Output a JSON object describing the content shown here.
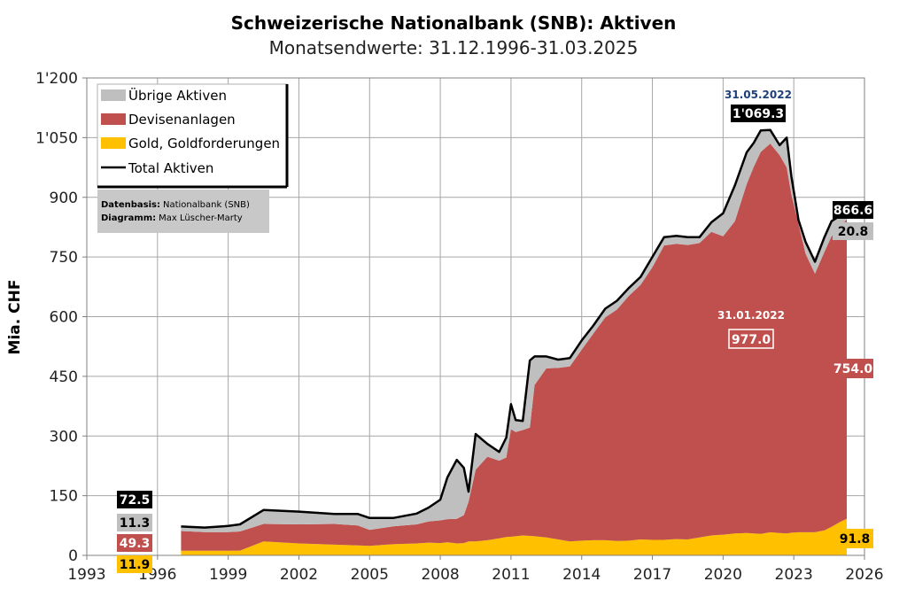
{
  "chart_data": {
    "type": "area",
    "title": "Schweizerische Nationalbank (SNB): Aktiven",
    "subtitle": "Monatsendwerte: 31.12.1996-31.03.2025",
    "ylabel": "Mia. CHF",
    "xlim": [
      1993,
      2026
    ],
    "ylim": [
      0,
      1200
    ],
    "x_ticks": [
      "1993",
      "1996",
      "1999",
      "2002",
      "2005",
      "2008",
      "2011",
      "2014",
      "2017",
      "2020",
      "2023",
      "2026"
    ],
    "y_ticks": [
      "0",
      "150",
      "300",
      "450",
      "600",
      "750",
      "900",
      "1'050",
      "1'200"
    ],
    "grid": true,
    "stack_order": [
      "Gold, Goldforderungen",
      "Devisenanlagen",
      "Übrige Aktiven"
    ],
    "x": [
      1997.0,
      1998.0,
      1999.0,
      1999.5,
      2000.5,
      2002.0,
      2003.5,
      2004.5,
      2005.0,
      2006.0,
      2007.0,
      2007.5,
      2008.0,
      2008.3,
      2008.7,
      2009.0,
      2009.2,
      2009.5,
      2010.0,
      2010.5,
      2010.8,
      2011.0,
      2011.2,
      2011.5,
      2011.8,
      2012.0,
      2012.5,
      2013.0,
      2013.5,
      2014.0,
      2014.5,
      2015.0,
      2015.5,
      2016.0,
      2016.5,
      2017.0,
      2017.5,
      2018.0,
      2018.5,
      2019.0,
      2019.5,
      2020.0,
      2020.5,
      2021.0,
      2021.3,
      2021.6,
      2022.0,
      2022.4,
      2022.7,
      2022.9,
      2023.2,
      2023.5,
      2023.9,
      2024.3,
      2024.6,
      2025.0,
      2025.25
    ],
    "series": [
      {
        "name": "Gold, Goldforderungen",
        "color": "#FFC000",
        "values": [
          11.9,
          11.5,
          11.5,
          12.0,
          35.0,
          30.0,
          27.0,
          25.0,
          24.0,
          28.0,
          30.0,
          32.0,
          31.0,
          33.0,
          30.0,
          31.0,
          35.0,
          35.0,
          38.0,
          43.0,
          46.0,
          47.0,
          48.0,
          50.0,
          49.0,
          48.0,
          45.0,
          40.0,
          35.0,
          37.0,
          38.0,
          38.0,
          36.0,
          37.0,
          40.0,
          39.0,
          39.0,
          41.0,
          40.0,
          45.0,
          50.0,
          52.0,
          55.0,
          56.0,
          55.0,
          54.0,
          58.0,
          56.0,
          55.0,
          57.0,
          58.0,
          58.0,
          58.0,
          63.0,
          72.0,
          85.0,
          91.8
        ]
      },
      {
        "name": "Devisenanlagen",
        "color": "#C0504D",
        "values": [
          49.3,
          47.0,
          47.0,
          48.0,
          44.0,
          48.0,
          52.0,
          50.0,
          40.0,
          45.0,
          48.0,
          53.0,
          57.0,
          58.0,
          62.0,
          70.0,
          100.0,
          180.0,
          210.0,
          195.0,
          200.0,
          270.0,
          262.0,
          265.0,
          272.0,
          380.0,
          425.0,
          431.0,
          440.0,
          480.0,
          520.0,
          560.0,
          582.0,
          615.0,
          640.0,
          685.0,
          740.0,
          742.0,
          740.0,
          740.0,
          763.0,
          750.0,
          785.0,
          877.0,
          922.0,
          960.0,
          977.0,
          950.0,
          920.0,
          850.0,
          775.0,
          700.0,
          650.0,
          700.0,
          730.0,
          740.0,
          754.0
        ]
      },
      {
        "name": "Übrige Aktiven",
        "color": "#BFBFBF",
        "values": [
          11.3,
          11.5,
          15.5,
          18.0,
          35.0,
          32.0,
          25.0,
          29.0,
          30.0,
          21.0,
          27.0,
          35.0,
          52.0,
          105.0,
          148.0,
          119.0,
          25.0,
          90.0,
          32.0,
          22.0,
          50.0,
          63.0,
          30.0,
          23.0,
          169.0,
          72.0,
          30.0,
          21.0,
          21.0,
          23.0,
          20.0,
          22.0,
          22.0,
          20.0,
          20.0,
          26.0,
          21.0,
          20.0,
          20.0,
          15.0,
          24.0,
          58.0,
          90.0,
          80.0,
          60.0,
          54.0,
          34.3,
          25.0,
          75.0,
          45.0,
          10.0,
          30.0,
          30.0,
          37.0,
          38.0,
          30.0,
          20.8
        ]
      },
      {
        "name": "Total Aktiven",
        "color": "#000000",
        "values": [
          72.5,
          70.0,
          74.0,
          78.0,
          114.0,
          110.0,
          104.0,
          104.0,
          94.0,
          94.0,
          105.0,
          120.0,
          140.0,
          196.0,
          240.0,
          220.0,
          160.0,
          305.0,
          280.0,
          260.0,
          296.0,
          380.0,
          340.0,
          338.0,
          490.0,
          500.0,
          500.0,
          492.0,
          496.0,
          540.0,
          578.0,
          620.0,
          640.0,
          672.0,
          700.0,
          750.0,
          800.0,
          803.0,
          800.0,
          800.0,
          837.0,
          860.0,
          930.0,
          1013.0,
          1037.0,
          1068.0,
          1069.3,
          1031.0,
          1050.0,
          952.0,
          843.0,
          788.0,
          738.0,
          800.0,
          840.0,
          855.0,
          866.6
        ]
      }
    ],
    "legend": {
      "position": "top-left",
      "entries": [
        "Übrige Aktiven",
        "Devisenanlagen",
        "Gold, Goldforderungen",
        "Total Aktiven"
      ]
    },
    "source_note": {
      "line1_label": "Datenbasis:",
      "line1_value": "Nationalbank (SNB)",
      "line2_label": "Diagramm:",
      "line2_value": "Max Lüscher-Marty"
    },
    "annotations": {
      "peak_date": "31.05.2022",
      "peak_value": "1'069.3",
      "fx_peak_date": "31.01.2022",
      "fx_peak_value": "977.0",
      "start_total": "72.5",
      "start_other": "11.3",
      "start_fx": "49.3",
      "start_gold": "11.9",
      "end_total": "866.6",
      "end_other": "20.8",
      "end_fx": "754.0",
      "end_gold": "91.8"
    }
  }
}
